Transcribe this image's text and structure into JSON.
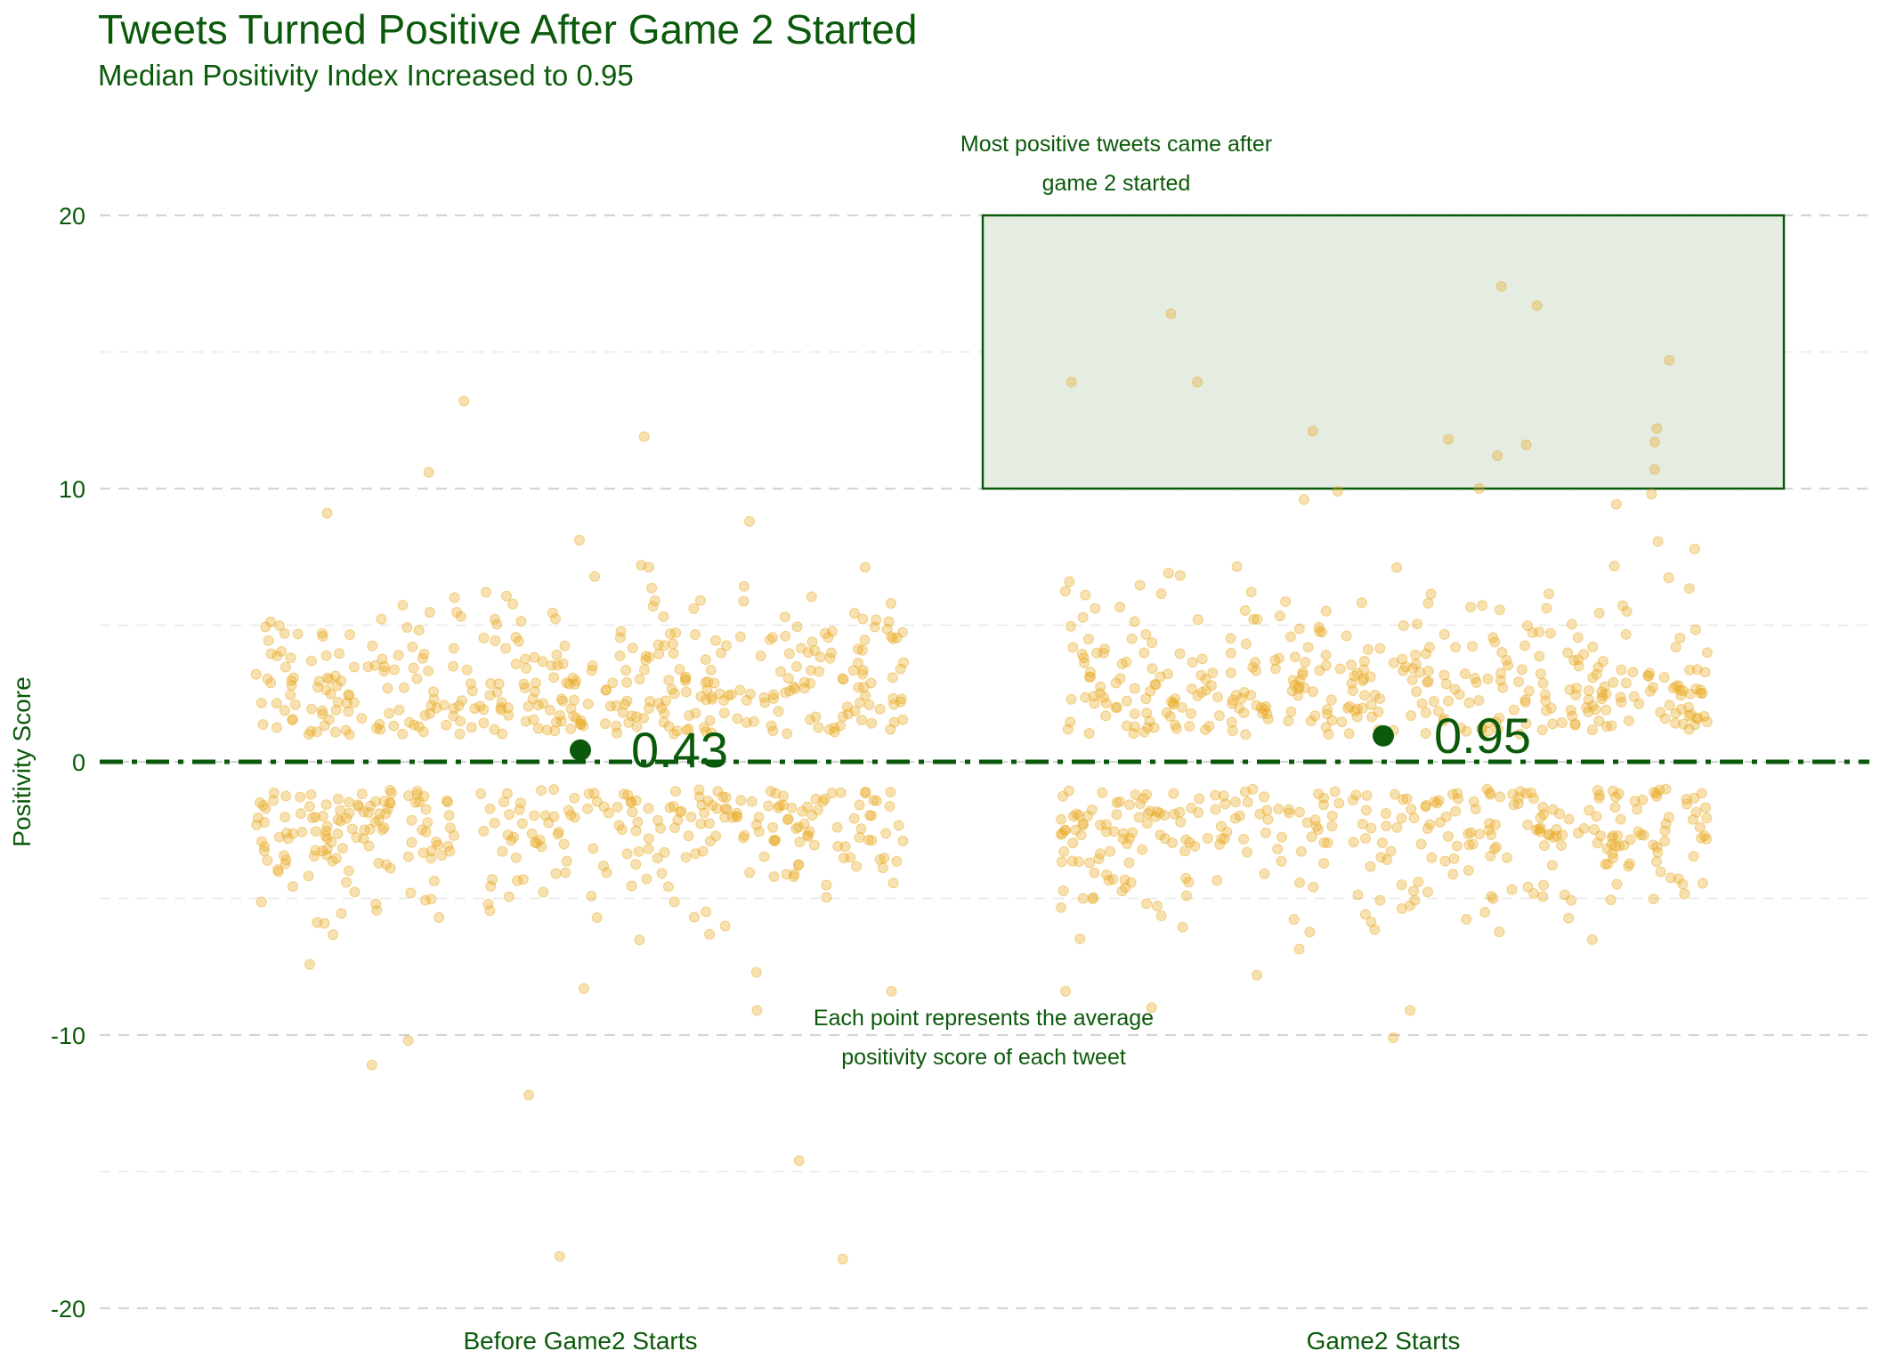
{
  "chart_data": {
    "type": "scatter",
    "title": "Tweets Turned Positive After Game 2 Started",
    "subtitle": "Median Positivity Index Increased to 0.95",
    "xlabel": "",
    "ylabel": "Positivity Score",
    "categories": [
      "Before Game2 Starts",
      "Game2 Starts"
    ],
    "ylim": [
      -20,
      20
    ],
    "yticks": [
      -20,
      -10,
      0,
      10,
      20
    ],
    "grid": true,
    "reference_line": {
      "y": 0,
      "style": "dash-dot"
    },
    "medians": [
      {
        "category": "Before Game2 Starts",
        "value": 0.43,
        "label": "0.43"
      },
      {
        "category": "Game2 Starts",
        "value": 0.95,
        "label": "0.95"
      }
    ],
    "highlight_box": {
      "category": "Game2 Starts",
      "y_range": [
        10,
        20
      ]
    },
    "annotations": [
      {
        "text": "Most positive tweets came after\ngame 2 started",
        "category": "Game2 Starts",
        "y": 21.5
      },
      {
        "text": "Each point represents the average\npositivity score of each tweet",
        "category": "between",
        "y": -10.5
      }
    ],
    "points_per_group": 700,
    "notable_points": {
      "Before Game2 Starts": [
        13.2,
        11.9,
        10.6,
        -12.2,
        -14.6,
        -18.2,
        -18.1,
        -11.1,
        -10.2,
        -9.1,
        -8.4,
        -8.3,
        9.1,
        8.8
      ],
      "Game2 Starts": [
        17.4,
        16.7,
        16.4,
        14.7,
        13.9,
        13.9,
        12.2,
        12.1,
        11.8,
        11.7,
        11.6,
        11.2,
        10.7,
        10.0,
        9.9,
        9.8,
        -10.1,
        -9.1,
        -9.0,
        -8.4
      ]
    }
  },
  "colors": {
    "text": "#0b5a0b",
    "points": "#e8a820",
    "median_dot": "#0b5a0b",
    "box_fill": "#e5ede3",
    "box_stroke": "#0b5a0b",
    "grid": "#d9d9d9"
  }
}
